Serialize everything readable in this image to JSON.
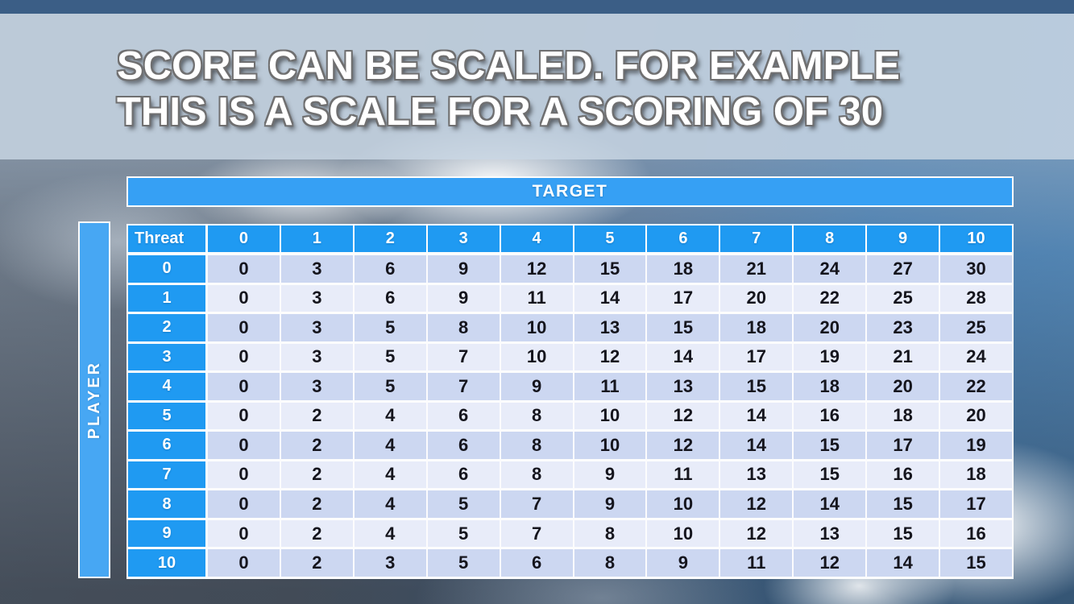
{
  "slide": {
    "title_line1": "SCORE CAN BE SCALED. FOR EXAMPLE",
    "title_line2": "THIS IS A SCALE FOR A SCORING OF 30"
  },
  "matrix": {
    "target_label": "TARGET",
    "player_label": "PLAYER",
    "corner_label": "Threat",
    "col_headers": [
      "0",
      "1",
      "2",
      "3",
      "4",
      "5",
      "6",
      "7",
      "8",
      "9",
      "10"
    ],
    "rows": [
      {
        "threat": "0",
        "values": [
          0,
          3,
          6,
          9,
          12,
          15,
          18,
          21,
          24,
          27,
          30
        ]
      },
      {
        "threat": "1",
        "values": [
          0,
          3,
          6,
          9,
          11,
          14,
          17,
          20,
          22,
          25,
          28
        ]
      },
      {
        "threat": "2",
        "values": [
          0,
          3,
          5,
          8,
          10,
          13,
          15,
          18,
          20,
          23,
          25
        ]
      },
      {
        "threat": "3",
        "values": [
          0,
          3,
          5,
          7,
          10,
          12,
          14,
          17,
          19,
          21,
          24
        ]
      },
      {
        "threat": "4",
        "values": [
          0,
          3,
          5,
          7,
          9,
          11,
          13,
          15,
          18,
          20,
          22
        ]
      },
      {
        "threat": "5",
        "values": [
          0,
          2,
          4,
          6,
          8,
          10,
          12,
          14,
          16,
          18,
          20
        ]
      },
      {
        "threat": "6",
        "values": [
          0,
          2,
          4,
          6,
          8,
          10,
          12,
          14,
          15,
          17,
          19
        ]
      },
      {
        "threat": "7",
        "values": [
          0,
          2,
          4,
          6,
          8,
          9,
          11,
          13,
          15,
          16,
          18
        ]
      },
      {
        "threat": "8",
        "values": [
          0,
          2,
          4,
          5,
          7,
          9,
          10,
          12,
          14,
          15,
          17
        ]
      },
      {
        "threat": "9",
        "values": [
          0,
          2,
          4,
          5,
          7,
          8,
          10,
          12,
          13,
          15,
          16
        ]
      },
      {
        "threat": "10",
        "values": [
          0,
          2,
          3,
          5,
          6,
          8,
          9,
          11,
          12,
          14,
          15
        ]
      }
    ]
  },
  "colors": {
    "accent_blue": "#1f9af2",
    "target_bar_blue": "#36a0f4",
    "player_bar_blue": "#47a7f3",
    "row_dark": "#ccd7f1",
    "row_light": "#e8ecf9",
    "cell_text": "#15151d",
    "top_strip_blue": "#3b5e86",
    "title_band": "#c9d7e4"
  }
}
